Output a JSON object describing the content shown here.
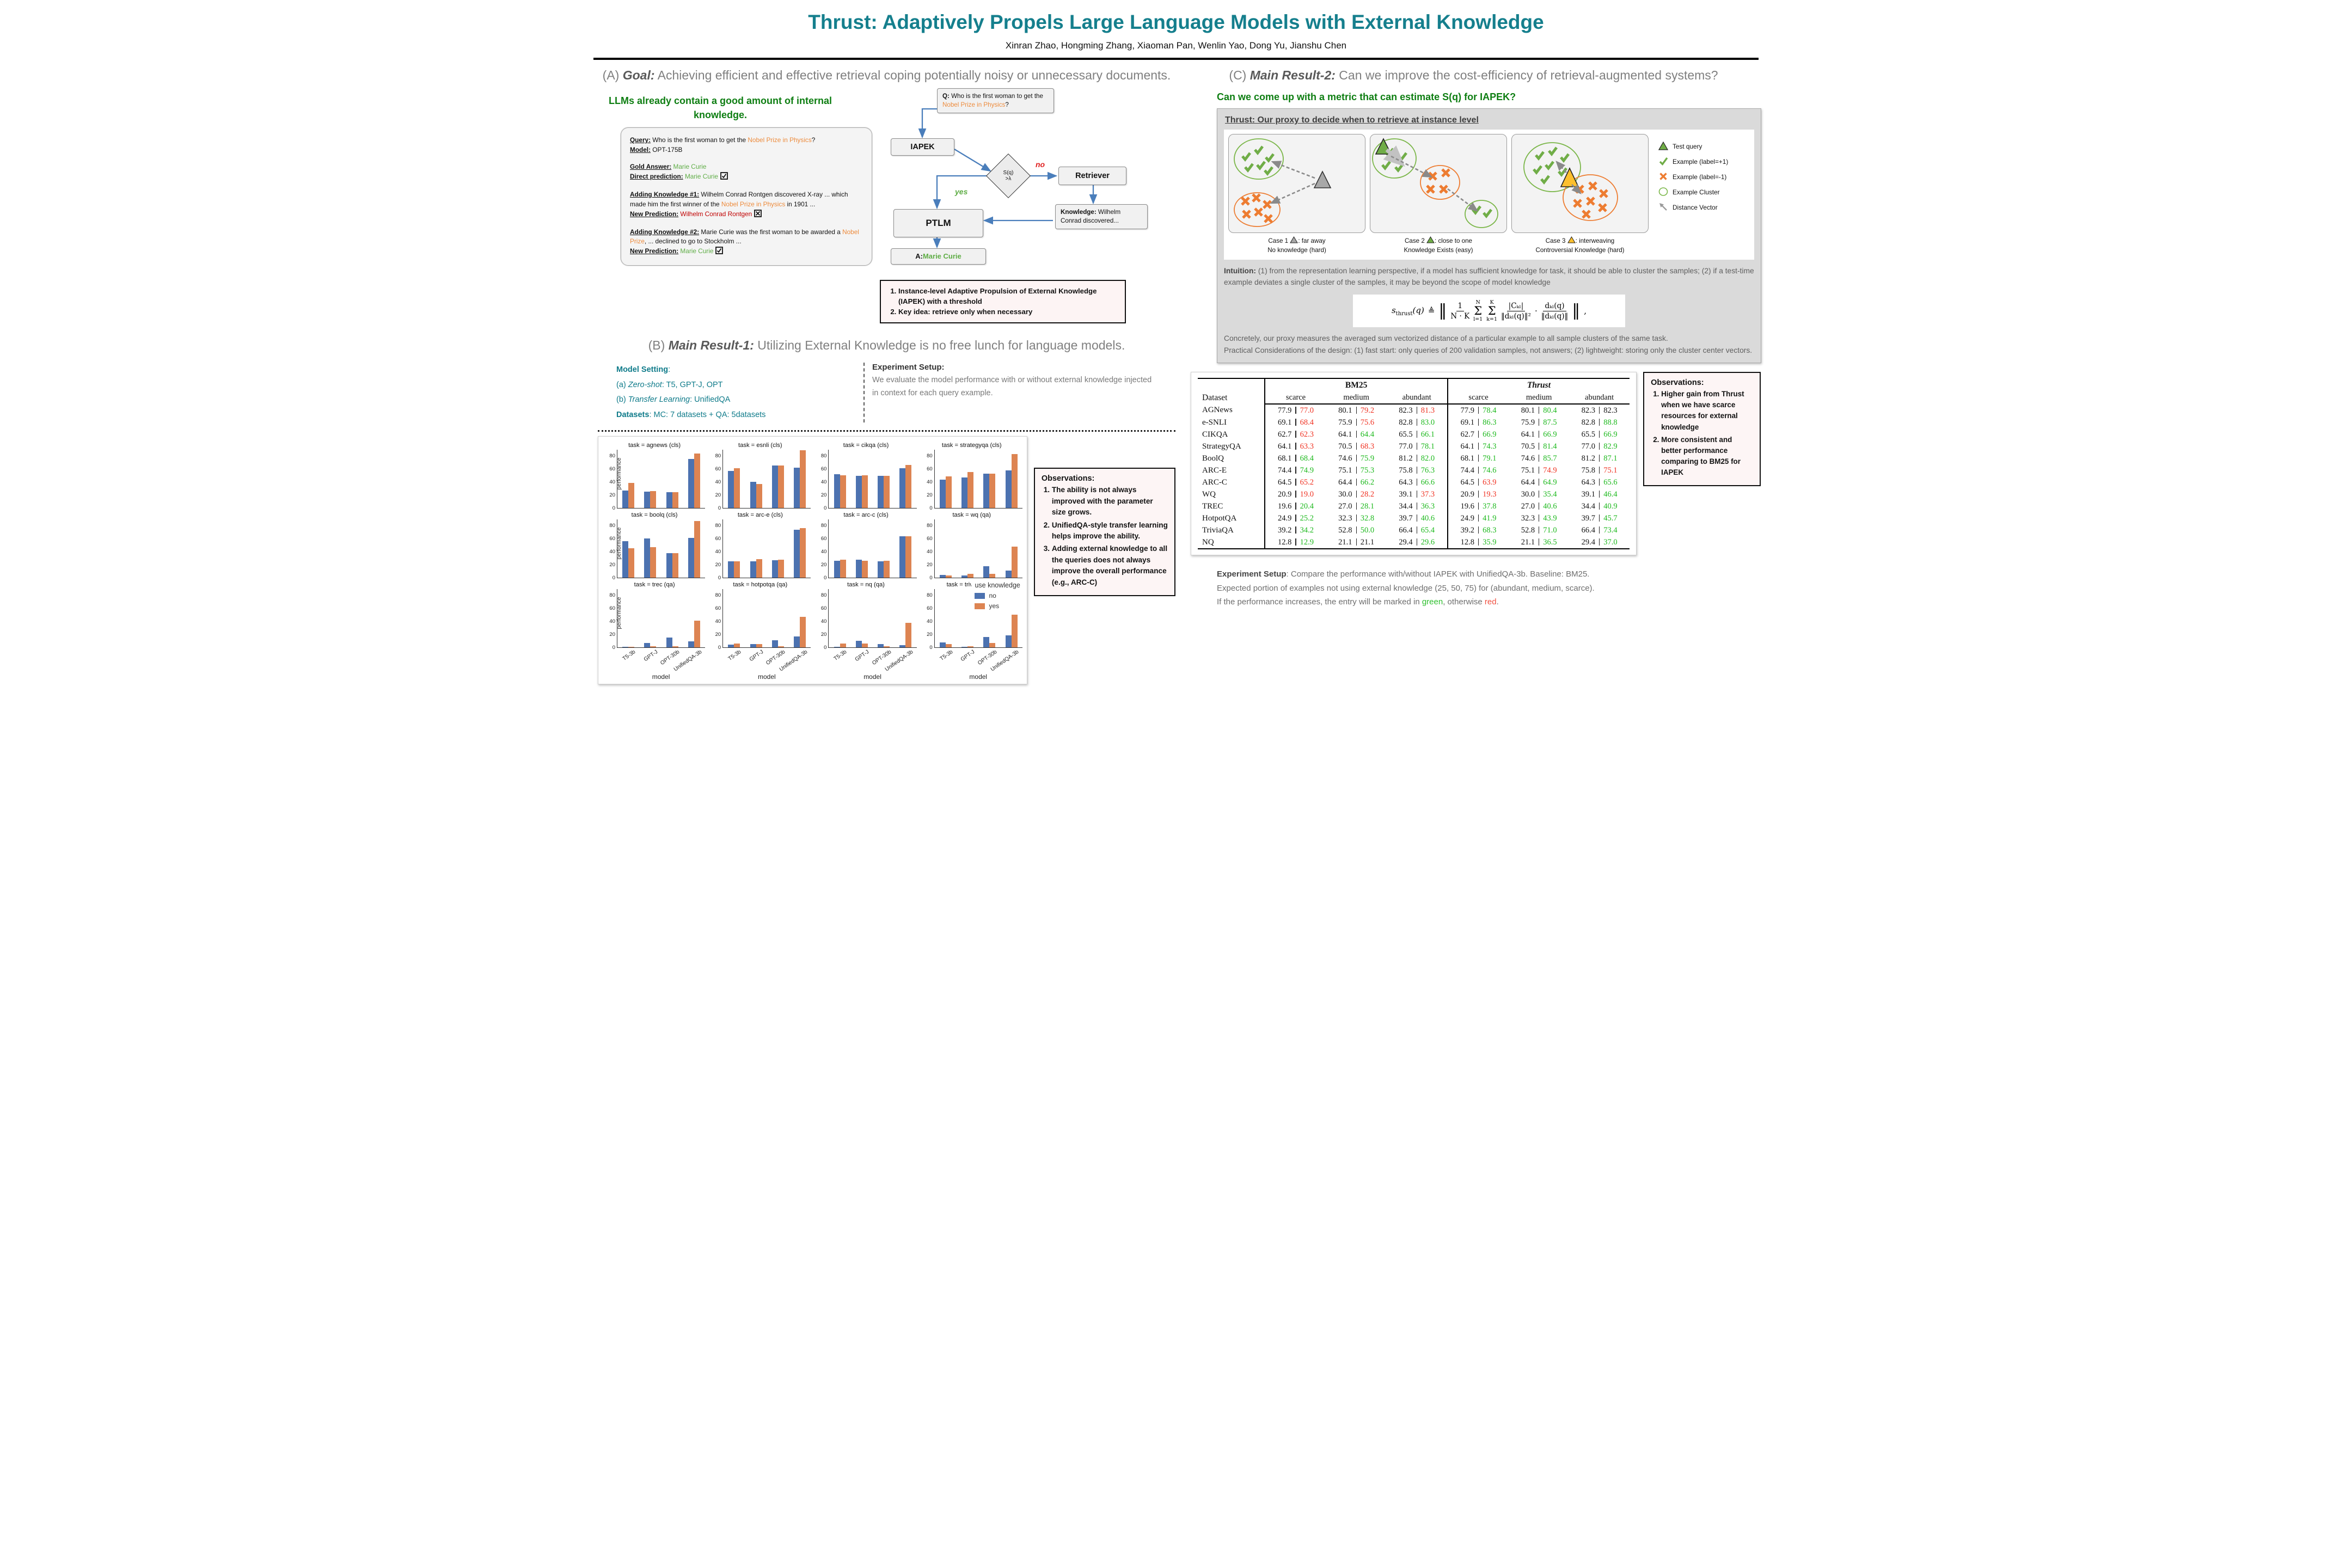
{
  "poster": {
    "title": "Thrust: Adaptively Propels Large Language Models with External Knowledge",
    "authors": "Xinran Zhao, Hongming Zhang, Xiaoman Pan, Wenlin Yao, Dong Yu, Jianshu Chen"
  },
  "colors": {
    "teal_title": "#157F8D",
    "green_note": "#0E7E12",
    "orange_highlight": "#ED8B3C",
    "green_answer": "#5FAD46",
    "red_wrong": "#C00000",
    "bar_no": "#4C72B0",
    "bar_yes": "#DD8452",
    "table_green": "#1DB91D",
    "table_red": "#F03222",
    "flow_arrow": "#4A7EBB"
  },
  "section_a": {
    "label": "(A) ",
    "heading_bold": "Goal:",
    "heading_rest": " Achieving efficient and effective retrieval coping potentially noisy or unnecessary documents.",
    "green_note": "LLMs already contain a good amount of internal knowledge.",
    "example_card": {
      "query_label": "Query:",
      "query_prefix": "  Who is the first woman to get the ",
      "query_highlight": "Nobel Prize in Physics",
      "query_suffix": "?",
      "model_label": "Model:",
      "model_value": "  OPT-175B",
      "gold_label": "Gold Answer:",
      "gold_value": "  Marie Curie",
      "direct_label": "Direct prediction:",
      "direct_value": "  Marie Curie",
      "k1_label": "Adding Knowledge #1:",
      "k1_text_1": "  Wilhelm Conrad Rontgen discovered X-ray ... which made him the first winner of the ",
      "k1_highlight": "Nobel Prize in Physics",
      "k1_text_2": " in 1901 ...",
      "np1_label": "New Prediction:",
      "np1_value": " Wilhelm Conrad Rontgen",
      "k2_label": "Adding Knowledge #2:",
      "k2_text_1": "  Marie Curie was the first woman to be awarded a ",
      "k2_highlight": "Nobel Prize",
      "k2_text_2": ", ... declined to go to Stockholm ...",
      "np2_label": "New Prediction:",
      "np2_value": "  Marie Curie"
    },
    "flowchart": {
      "q_bold": "Q:",
      "q_text": " Who is the first woman to get the ",
      "q_highlight": "Nobel Prize in Physics",
      "q_suffix": "?",
      "iapek": "IAPEK",
      "condition_line1": "S(q)",
      "condition_line2": ">λ",
      "no_label": "no",
      "yes_label": "yes",
      "retriever": "Retriever",
      "knowledge_bold": "Knowledge:",
      "knowledge_text": " Wilhelm Conrad discovered...",
      "ptlm": "PTLM",
      "answer_bold": "A:",
      "answer_value": " Marie Curie"
    },
    "key_points": [
      "Instance-level Adaptive Propulsion of External Knowledge (IAPEK) with a threshold",
      "Key idea: retrieve only when necessary"
    ]
  },
  "section_b": {
    "label": "(B) ",
    "heading_bold": "Main Result-1:",
    "heading_rest": " Utilizing External Knowledge is no free lunch for language models.",
    "model_setting": {
      "title": "Model Setting",
      "title_colon": ":",
      "a_pre": "(a) ",
      "a_italic": "Zero-shot",
      "a_rest": ": T5, GPT-J, OPT",
      "b_pre": "(b) ",
      "b_italic": "Transfer Learning",
      "b_rest": ": UnifiedQA",
      "datasets_bold": "Datasets",
      "datasets_rest": ": MC: 7 datasets + QA: 5datasets"
    },
    "experiment_setup": {
      "title": "Experiment Setup",
      "title_colon": ":",
      "body": "We evaluate the model performance with or without external knowledge injected in context for each query example."
    },
    "observations_title": "Observations:",
    "observations": [
      "The ability is not always improved with the parameter size grows.",
      "UnifiedQA-style transfer learning helps improve the ability.",
      "Adding external knowledge to all the queries does not always improve the overall performance (e.g., ARC-C)"
    ]
  },
  "chart_data": [
    {
      "type": "bar",
      "categories": [
        "T5-3b",
        "GPT-J",
        "OPT-30b",
        "UnifiedQA-3b"
      ],
      "xlabel": "model",
      "ylabel": "performance",
      "ylim": [
        0,
        90
      ],
      "yticks": [
        0,
        20,
        40,
        60,
        80
      ],
      "grid": false,
      "legend": {
        "title": "use knowledge",
        "position": "right-middle",
        "entries": [
          {
            "name": "no",
            "color": "#4C72B0"
          },
          {
            "name": "yes",
            "color": "#DD8452"
          }
        ]
      },
      "panels": [
        {
          "title": "task = agnews (cls)",
          "no": [
            27,
            25,
            24.5,
            75
          ],
          "yes": [
            39,
            26.5,
            24.5,
            84
          ]
        },
        {
          "title": "task = esnli (cls)",
          "no": [
            57,
            40.5,
            65.5,
            62
          ],
          "yes": [
            61,
            37,
            65.5,
            89
          ]
        },
        {
          "title": "task = cikqa (cls)",
          "no": [
            52,
            49.5,
            49.5,
            61
          ],
          "yes": [
            50,
            50.5,
            49.5,
            66.5
          ]
        },
        {
          "title": "task = strategyqa (cls)",
          "no": [
            44,
            47,
            53,
            57.5
          ],
          "yes": [
            48.5,
            55.5,
            53,
            83
          ]
        },
        {
          "title": "task = boolq (cls)",
          "no": [
            56,
            60,
            37.5,
            61
          ],
          "yes": [
            45,
            47,
            37.5,
            87
          ]
        },
        {
          "title": "task = arc-e (cls)",
          "no": [
            25.5,
            25,
            27,
            73.5
          ],
          "yes": [
            25.5,
            29,
            27.5,
            76
          ]
        },
        {
          "title": "task = arc-c (cls)",
          "no": [
            26,
            28,
            25.5,
            64
          ],
          "yes": [
            28,
            26.5,
            26,
            64
          ]
        },
        {
          "title": "task = wq (qa)",
          "no": [
            4.5,
            4,
            18,
            11
          ],
          "yes": [
            3.5,
            6,
            6,
            48
          ]
        },
        {
          "title": "task = trec (qa)",
          "no": [
            1.5,
            7,
            15.5,
            9.5
          ],
          "yes": [
            1,
            2,
            2,
            41.5
          ]
        },
        {
          "title": "task = hotpotqa (qa)",
          "no": [
            4.5,
            5.5,
            11,
            17
          ],
          "yes": [
            6,
            5,
            2,
            47
          ]
        },
        {
          "title": "task = nq (qa)",
          "no": [
            1.5,
            10.5,
            5,
            4
          ],
          "yes": [
            6,
            6.5,
            2,
            37.5
          ]
        },
        {
          "title": "task = triviaqa (qa)",
          "no": [
            8,
            1.5,
            16,
            18.5
          ],
          "yes": [
            5.5,
            2,
            7,
            80
          ]
        }
      ]
    },
    {
      "type": "table",
      "dataset_header": "Dataset",
      "group_headers": [
        "BM25",
        "Thrust"
      ],
      "sub_headers": [
        "scarce",
        "medium",
        "abundant"
      ],
      "rows": [
        {
          "dataset": "AGNews",
          "cells": [
            [
              "77.9",
              "77.0",
              "red"
            ],
            [
              "80.1",
              "79.2",
              "red"
            ],
            [
              "82.3",
              "81.3",
              "red"
            ],
            [
              "77.9",
              "78.4",
              "green"
            ],
            [
              "80.1",
              "80.4",
              "green"
            ],
            [
              "82.3",
              "82.3",
              "plain"
            ]
          ]
        },
        {
          "dataset": "e-SNLI",
          "cells": [
            [
              "69.1",
              "68.4",
              "red"
            ],
            [
              "75.9",
              "75.6",
              "red"
            ],
            [
              "82.8",
              "83.0",
              "green"
            ],
            [
              "69.1",
              "86.3",
              "green"
            ],
            [
              "75.9",
              "87.5",
              "green"
            ],
            [
              "82.8",
              "88.8",
              "green"
            ]
          ]
        },
        {
          "dataset": "CIKQA",
          "cells": [
            [
              "62.7",
              "62.3",
              "red"
            ],
            [
              "64.1",
              "64.4",
              "green"
            ],
            [
              "65.5",
              "66.1",
              "green"
            ],
            [
              "62.7",
              "66.9",
              "green"
            ],
            [
              "64.1",
              "66.9",
              "green"
            ],
            [
              "65.5",
              "66.9",
              "green"
            ]
          ]
        },
        {
          "dataset": "StrategyQA",
          "cells": [
            [
              "64.1",
              "63.3",
              "red"
            ],
            [
              "70.5",
              "68.3",
              "red"
            ],
            [
              "77.0",
              "78.1",
              "green"
            ],
            [
              "64.1",
              "74.3",
              "green"
            ],
            [
              "70.5",
              "81.4",
              "green"
            ],
            [
              "77.0",
              "82.9",
              "green"
            ]
          ]
        },
        {
          "dataset": "BoolQ",
          "cells": [
            [
              "68.1",
              "68.4",
              "green"
            ],
            [
              "74.6",
              "75.9",
              "green"
            ],
            [
              "81.2",
              "82.0",
              "green"
            ],
            [
              "68.1",
              "79.1",
              "green"
            ],
            [
              "74.6",
              "85.7",
              "green"
            ],
            [
              "81.2",
              "87.1",
              "green"
            ]
          ]
        },
        {
          "dataset": "ARC-E",
          "cells": [
            [
              "74.4",
              "74.9",
              "green"
            ],
            [
              "75.1",
              "75.3",
              "green"
            ],
            [
              "75.8",
              "76.3",
              "green"
            ],
            [
              "74.4",
              "74.6",
              "green"
            ],
            [
              "75.1",
              "74.9",
              "red"
            ],
            [
              "75.8",
              "75.1",
              "red"
            ]
          ]
        },
        {
          "dataset": "ARC-C",
          "cells": [
            [
              "64.5",
              "65.2",
              "red"
            ],
            [
              "64.4",
              "66.2",
              "green"
            ],
            [
              "64.3",
              "66.6",
              "green"
            ],
            [
              "64.5",
              "63.9",
              "red"
            ],
            [
              "64.4",
              "64.9",
              "green"
            ],
            [
              "64.3",
              "65.6",
              "green"
            ]
          ]
        },
        {
          "dataset": "WQ",
          "cells": [
            [
              "20.9",
              "19.0",
              "red"
            ],
            [
              "30.0",
              "28.2",
              "red"
            ],
            [
              "39.1",
              "37.3",
              "red"
            ],
            [
              "20.9",
              "19.3",
              "red"
            ],
            [
              "30.0",
              "35.4",
              "green"
            ],
            [
              "39.1",
              "46.4",
              "green"
            ]
          ]
        },
        {
          "dataset": "TREC",
          "cells": [
            [
              "19.6",
              "20.4",
              "green"
            ],
            [
              "27.0",
              "28.1",
              "green"
            ],
            [
              "34.4",
              "36.3",
              "green"
            ],
            [
              "19.6",
              "37.8",
              "green"
            ],
            [
              "27.0",
              "40.6",
              "green"
            ],
            [
              "34.4",
              "40.9",
              "green"
            ]
          ]
        },
        {
          "dataset": "HotpotQA",
          "cells": [
            [
              "24.9",
              "25.2",
              "green"
            ],
            [
              "32.3",
              "32.8",
              "green"
            ],
            [
              "39.7",
              "40.6",
              "green"
            ],
            [
              "24.9",
              "41.9",
              "green"
            ],
            [
              "32.3",
              "43.9",
              "green"
            ],
            [
              "39.7",
              "45.7",
              "green"
            ]
          ]
        },
        {
          "dataset": "TriviaQA",
          "cells": [
            [
              "39.2",
              "34.2",
              "green"
            ],
            [
              "52.8",
              "50.0",
              "green"
            ],
            [
              "66.4",
              "65.4",
              "green"
            ],
            [
              "39.2",
              "68.3",
              "green"
            ],
            [
              "52.8",
              "71.0",
              "green"
            ],
            [
              "66.4",
              "73.4",
              "green"
            ]
          ]
        },
        {
          "dataset": "NQ",
          "cells": [
            [
              "12.8",
              "12.9",
              "green"
            ],
            [
              "21.1",
              "21.1",
              "plain"
            ],
            [
              "29.4",
              "29.6",
              "green"
            ],
            [
              "12.8",
              "35.9",
              "green"
            ],
            [
              "21.1",
              "36.5",
              "green"
            ],
            [
              "29.4",
              "37.0",
              "green"
            ]
          ]
        }
      ]
    }
  ],
  "section_c": {
    "label": "(C) ",
    "heading_bold": "Main Result-2:",
    "heading_rest": " Can we improve the cost-efficiency of retrieval-augmented systems?",
    "green_question": "Can we come up with a metric that can estimate S(q) for IAPEK?",
    "proxy_box": {
      "header": "Thrust: Our proxy to decide when to retrieve at instance level",
      "cases": [
        {
          "caption_pre": "Case 1 ",
          "caption_post": ": far away",
          "caption_line2": "No knowledge (hard)",
          "triangle_color": "#a8a8a8"
        },
        {
          "caption_pre": "Case 2 ",
          "caption_post": ": close to one",
          "caption_line2": "Knowledge Exists (easy)",
          "triangle_color": "#70ad47"
        },
        {
          "caption_pre": "Case 3 ",
          "caption_post": ": interweaving",
          "caption_line2": "Controversial Knowledge (hard)",
          "triangle_color": "#fdbf2d"
        }
      ],
      "legend": [
        {
          "icon": "triangle-green-icon",
          "label": "Test query"
        },
        {
          "icon": "check-green-icon",
          "label": "Example (label=+1)"
        },
        {
          "icon": "cross-orange-icon",
          "label": "Example (label=-1)"
        },
        {
          "icon": "circle-green-icon",
          "label": "Example Cluster"
        },
        {
          "icon": "arrow-gray-icon",
          "label": "Distance Vector"
        }
      ],
      "intuition_bold": "Intuition:",
      "intuition_text": " (1) from the representation learning perspective, if a model has sufficient knowledge for task, it should be able to cluster the samples; (2) if a test-time example deviates a single cluster of the samples, it may be beyond the scope of model knowledge",
      "formula": {
        "s": "s",
        "s_sub": "thrust",
        "arg": "(q)",
        "def": "≜",
        "lnorm": "‖",
        "frac1_num": "1",
        "frac1_den": "N · K",
        "sum1_top": "N",
        "sum1_sym": "Σ",
        "sum1_bot": "l=1",
        "sum2_top": "K",
        "sum2_sym": "Σ",
        "sum2_bot": "k=1",
        "frac2_num": "|Cₖₗ|",
        "frac2_den": "‖dₖₗ(q)‖²",
        "dot": "·",
        "frac3_num": "dₖₗ(q)",
        "frac3_den": "‖dₖₗ(q)‖",
        "rnorm": "‖",
        "comma": ","
      },
      "concretely_text": "Concretely, our proxy measures the averaged sum vectorized distance of a particular example to all sample clusters of the same task.",
      "practical_text": "Practical Considerations of the design: (1) fast start: only queries of 200 validation samples, not answers; (2) lightweight: storing only the cluster center vectors."
    },
    "observations_title": "Observations:",
    "observations": [
      "Higher gain from Thrust when we have scarce resources for external knowledge",
      "More consistent and better performance comparing to BM25 for IAPEK"
    ],
    "footer": {
      "bold": "Experiment Setup",
      "t1": ": Compare the performance with/without IAPEK with UnifiedQA-3b. Baseline: BM25.",
      "t2": "Expected portion of examples not using external knowledge (25, 50, 75) for (abundant, medium, scarce).",
      "t3_pre": "If the performance increases, the entry will be marked in ",
      "green_word": "green",
      "t3_mid": ", otherwise ",
      "red_word": "red",
      "t3_end": "."
    }
  }
}
